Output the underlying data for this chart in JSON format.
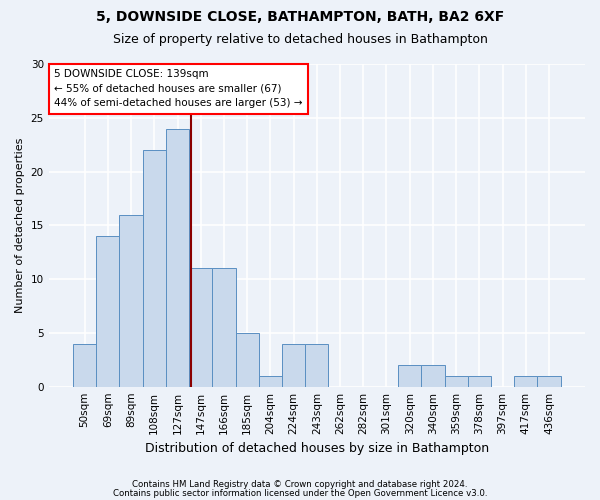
{
  "title1": "5, DOWNSIDE CLOSE, BATHAMPTON, BATH, BA2 6XF",
  "title2": "Size of property relative to detached houses in Bathampton",
  "xlabel": "Distribution of detached houses by size in Bathampton",
  "ylabel": "Number of detached properties",
  "bar_labels": [
    "50sqm",
    "69sqm",
    "89sqm",
    "108sqm",
    "127sqm",
    "147sqm",
    "166sqm",
    "185sqm",
    "204sqm",
    "224sqm",
    "243sqm",
    "262sqm",
    "282sqm",
    "301sqm",
    "320sqm",
    "340sqm",
    "359sqm",
    "378sqm",
    "397sqm",
    "417sqm",
    "436sqm"
  ],
  "bar_values": [
    4,
    14,
    16,
    22,
    24,
    11,
    11,
    5,
    1,
    4,
    4,
    0,
    0,
    0,
    2,
    2,
    1,
    1,
    0,
    1,
    1
  ],
  "bar_color": "#c9d9ec",
  "bar_edge_color": "#5a8fc2",
  "bar_width": 1.0,
  "red_line_index": 4.6,
  "annotation_line1": "5 DOWNSIDE CLOSE: 139sqm",
  "annotation_line2": "← 55% of detached houses are smaller (67)",
  "annotation_line3": "44% of semi-detached houses are larger (53) →",
  "annotation_box_color": "white",
  "annotation_box_edge": "red",
  "ylim": [
    0,
    30
  ],
  "yticks": [
    0,
    5,
    10,
    15,
    20,
    25,
    30
  ],
  "footer1": "Contains HM Land Registry data © Crown copyright and database right 2024.",
  "footer2": "Contains public sector information licensed under the Open Government Licence v3.0.",
  "background_color": "#edf2f9",
  "grid_color": "white",
  "title_fontsize": 10,
  "subtitle_fontsize": 9,
  "tick_fontsize": 7.5,
  "ylabel_fontsize": 8,
  "xlabel_fontsize": 9
}
